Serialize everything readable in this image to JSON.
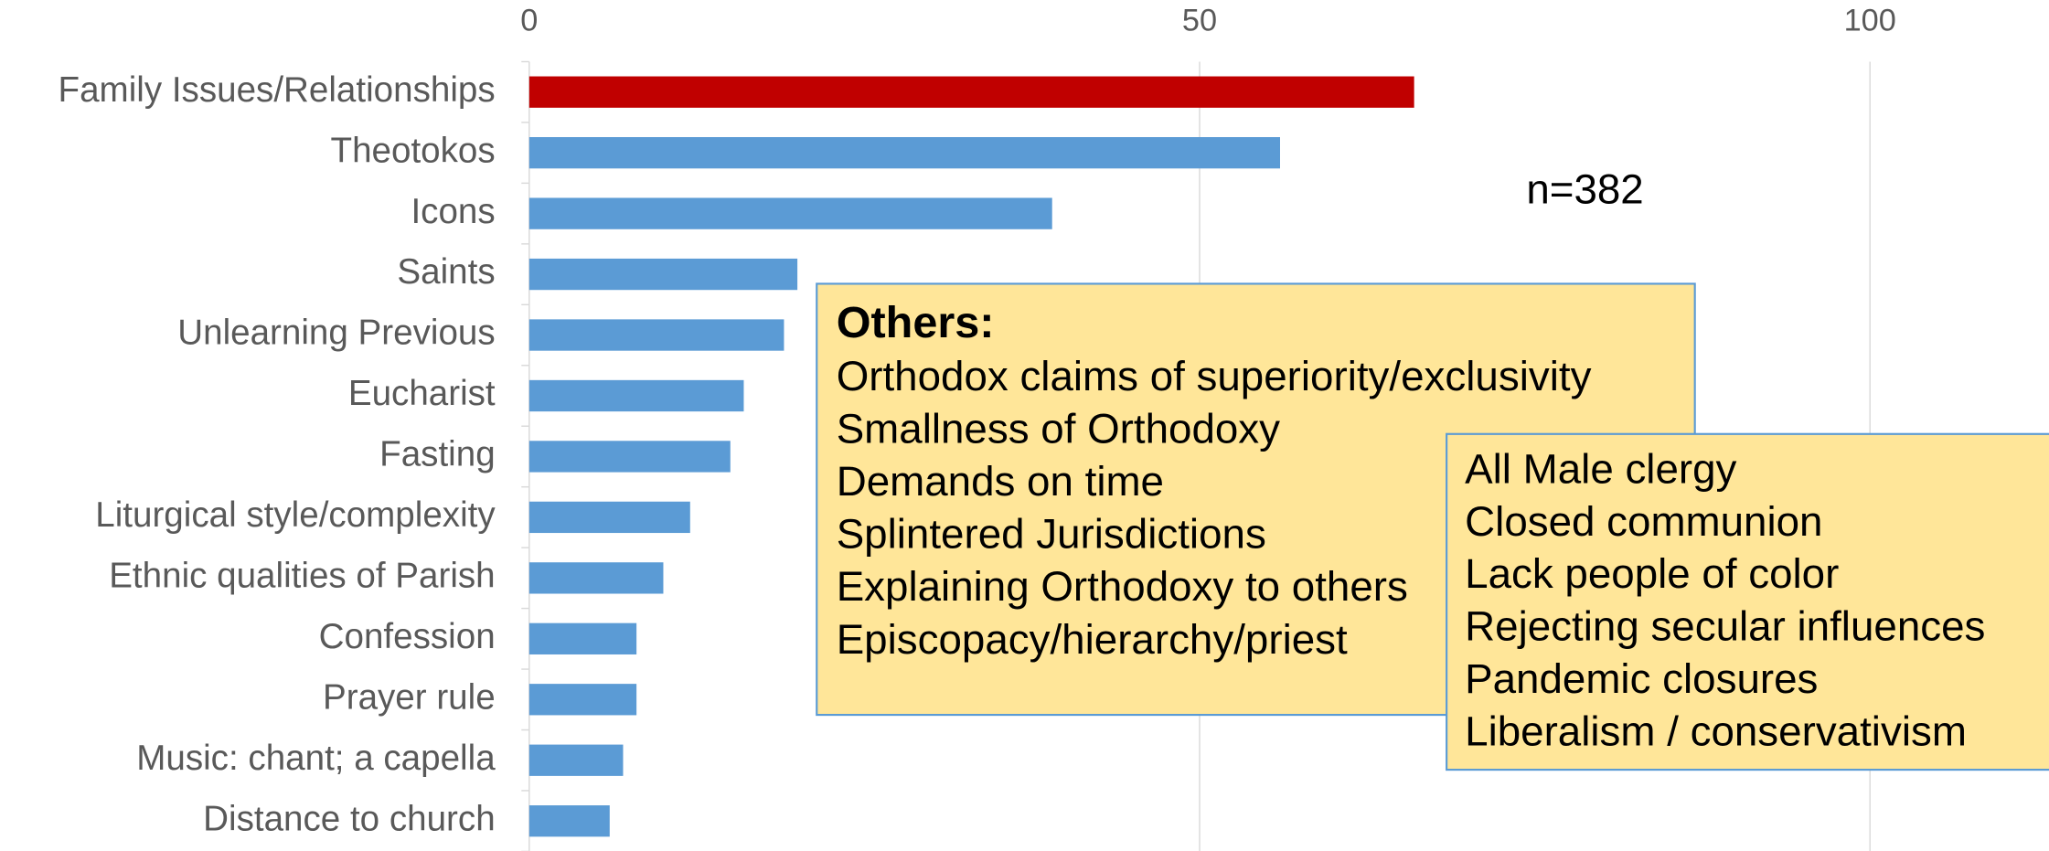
{
  "chart_data": {
    "type": "bar",
    "orientation": "horizontal",
    "categories": [
      "Family Issues/Relationships",
      "Theotokos",
      "Icons",
      "Saints",
      "Unlearning Previous",
      "Eucharist",
      "Fasting",
      "Liturgical style/complexity",
      "Ethnic qualities of Parish",
      "Confession",
      "Prayer rule",
      "Music: chant; a capella",
      "Distance to church"
    ],
    "values": [
      66,
      56,
      39,
      20,
      19,
      16,
      15,
      12,
      10,
      8,
      8,
      7,
      6
    ],
    "colors": [
      "#c00000",
      "#5b9bd5",
      "#5b9bd5",
      "#5b9bd5",
      "#5b9bd5",
      "#5b9bd5",
      "#5b9bd5",
      "#5b9bd5",
      "#5b9bd5",
      "#5b9bd5",
      "#5b9bd5",
      "#5b9bd5",
      "#5b9bd5"
    ],
    "xlim": [
      0,
      113
    ],
    "xticks": [
      0,
      50,
      100
    ],
    "grid": true,
    "annotations": {
      "sample_size": "n=382",
      "others_title": "Others:",
      "others_left": [
        "Orthodox claims of superiority/exclusivity",
        "Smallness of Orthodoxy",
        "Demands on time",
        "Splintered Jurisdictions",
        "Explaining Orthodoxy to others",
        "Episcopacy/hierarchy/priest"
      ],
      "others_right": [
        "All Male clergy",
        "Closed communion",
        "Lack people of color",
        "Rejecting secular influences",
        "Pandemic closures",
        "Liberalism / conservativism"
      ]
    }
  }
}
